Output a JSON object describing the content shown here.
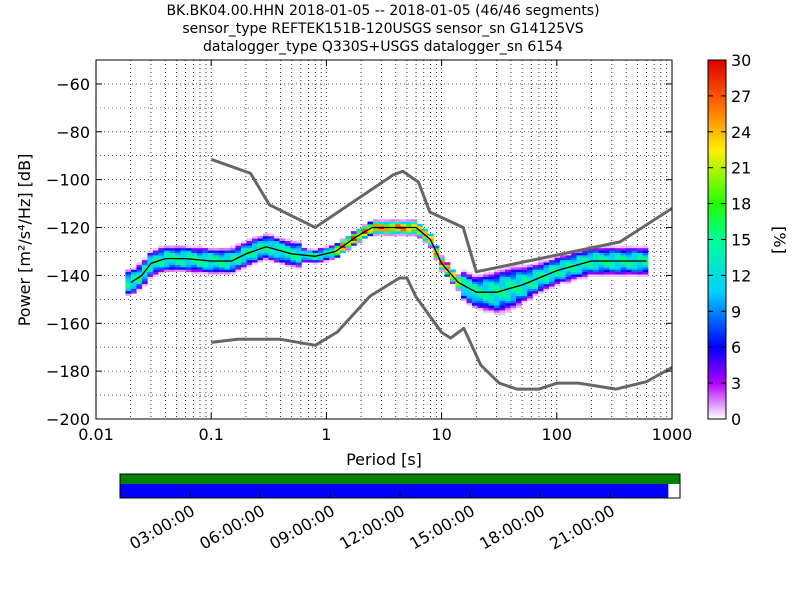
{
  "chart_data": {
    "type": "heatmap",
    "title_lines": [
      "BK.BK04.00.HHN   2018-01-05 -- 2018-01-05  (46/46 segments)",
      "sensor_type REFTEK151B-120USGS sensor_sn G14125VS",
      "datalogger_type Q330S+USGS datalogger_sn 6154"
    ],
    "xlabel": "Period [s]",
    "ylabel": "Power [m²/s⁴/Hz] [dB]",
    "x_scale": "log",
    "xlim": [
      0.01,
      1000
    ],
    "ylim": [
      -200,
      -50
    ],
    "x_ticks": [
      0.01,
      0.1,
      1,
      10,
      100,
      1000
    ],
    "x_tick_labels": [
      "0.01",
      "0.1",
      "1",
      "10",
      "100",
      "1000"
    ],
    "y_ticks": [
      -200,
      -180,
      -160,
      -140,
      -120,
      -100,
      -80,
      -60
    ],
    "y_tick_labels": [
      "−200",
      "−180",
      "−160",
      "−140",
      "−120",
      "−100",
      "−80",
      "−60"
    ],
    "grid": true,
    "colorbar": {
      "label": "[%]",
      "range": [
        0,
        30
      ],
      "ticks": [
        "0",
        "3",
        "6",
        "9",
        "12",
        "15",
        "18",
        "21",
        "24",
        "27",
        "30"
      ]
    },
    "noise_model_high": {
      "period": [
        0.1,
        0.22,
        0.32,
        0.8,
        3.8,
        4.6,
        6.3,
        7.9,
        15.4,
        20,
        354,
        1000
      ],
      "db": [
        -91.5,
        -97.4,
        -110.5,
        -120,
        -98,
        -96.5,
        -101,
        -113.5,
        -120,
        -138.5,
        -126,
        -112
      ]
    },
    "noise_model_low": {
      "period": [
        0.1,
        0.17,
        0.4,
        0.8,
        1.24,
        2.4,
        4.3,
        5,
        6,
        10,
        12,
        15.6,
        21.9,
        31.6,
        45,
        70,
        101,
        154,
        328,
        600,
        1000
      ],
      "db": [
        -168,
        -166.7,
        -166.7,
        -169.2,
        -163.7,
        -148.6,
        -141.1,
        -141.1,
        -149,
        -163.8,
        -166.2,
        -162.1,
        -177.5,
        -185,
        -187.5,
        -187.5,
        -185,
        -185,
        -187.5,
        -184.4,
        -178.5
      ]
    },
    "mode_curve": {
      "period": [
        0.02,
        0.025,
        0.03,
        0.04,
        0.06,
        0.1,
        0.15,
        0.2,
        0.3,
        0.5,
        0.8,
        1.2,
        1.8,
        2.5,
        4,
        6,
        8,
        10,
        14,
        20,
        30,
        50,
        100,
        200,
        400,
        600
      ],
      "db": [
        -143,
        -140,
        -135,
        -133,
        -133,
        -134,
        -134,
        -131,
        -128,
        -131,
        -132,
        -130,
        -124,
        -120,
        -120,
        -120,
        -125,
        -135,
        -143,
        -147,
        -147,
        -144,
        -138,
        -134,
        -134,
        -134
      ]
    },
    "density_bands": [
      {
        "pmin": 0.018,
        "pmax": 0.6,
        "shape": "wide"
      },
      {
        "pmin": 0.6,
        "pmax": 15,
        "shape": "narrow"
      },
      {
        "pmin": 15,
        "pmax": 620,
        "shape": "wide"
      }
    ],
    "data_availability": {
      "time_labels": [
        "03:00:00",
        "06:00:00",
        "09:00:00",
        "12:00:00",
        "15:00:00",
        "18:00:00",
        "21:00:00"
      ],
      "time_ticks_hours": [
        3,
        6,
        9,
        12,
        15,
        18,
        21
      ],
      "range_hours": [
        0,
        24
      ],
      "segments_color": "#008000",
      "data_color": "#0000ff",
      "data_end_hours": 23.5
    }
  }
}
